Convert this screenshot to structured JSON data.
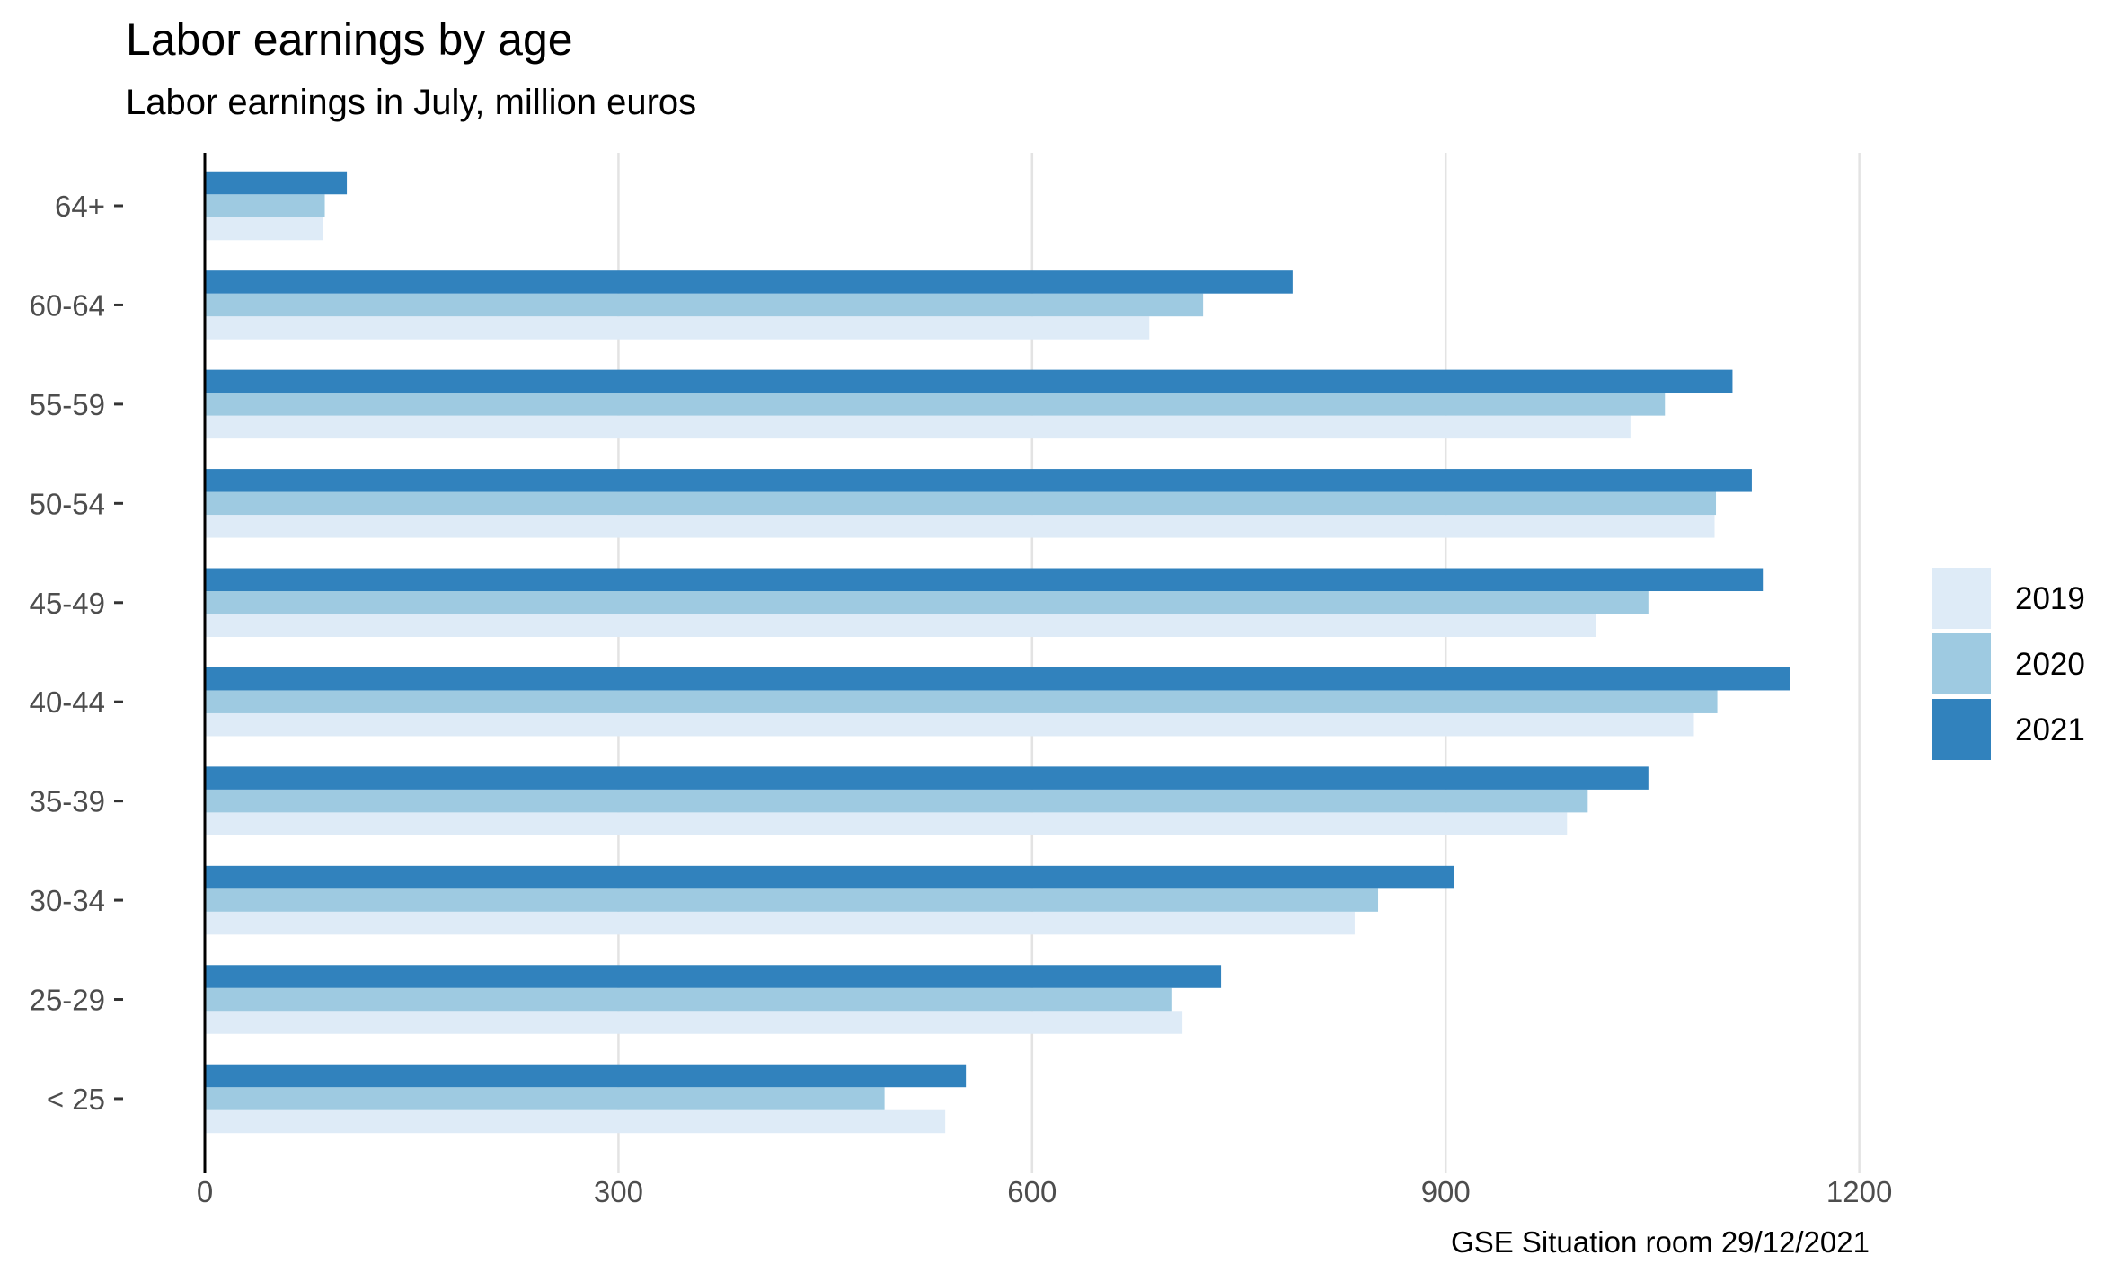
{
  "chart_data": {
    "type": "bar",
    "orientation": "horizontal",
    "title": "Labor earnings by age",
    "subtitle": "Labor earnings in July, million euros",
    "caption": "GSE Situation room 29/12/2021",
    "xlabel": "",
    "ylabel": "",
    "xlim": [
      0,
      1300
    ],
    "x_ticks": [
      0,
      300,
      600,
      900,
      1200
    ],
    "x_tick_labels": [
      "0",
      "300",
      "600",
      "900",
      "1200"
    ],
    "grid": "vertical major",
    "legend_position": "right",
    "categories": [
      "64+",
      "60-64",
      "55-59",
      "50-54",
      "45-49",
      "40-44",
      "35-39",
      "30-34",
      "25-29",
      "< 25"
    ],
    "series": [
      {
        "name": "2019",
        "color": "#deebf7",
        "values": [
          86,
          685,
          1034,
          1095,
          1009,
          1080,
          988,
          834,
          709,
          537
        ]
      },
      {
        "name": "2020",
        "color": "#9ecae1",
        "values": [
          87,
          724,
          1059,
          1096,
          1047,
          1097,
          1003,
          851,
          701,
          493
        ]
      },
      {
        "name": "2021",
        "color": "#3182bd",
        "values": [
          103,
          789,
          1108,
          1122,
          1130,
          1150,
          1047,
          906,
          737,
          552
        ]
      }
    ]
  }
}
